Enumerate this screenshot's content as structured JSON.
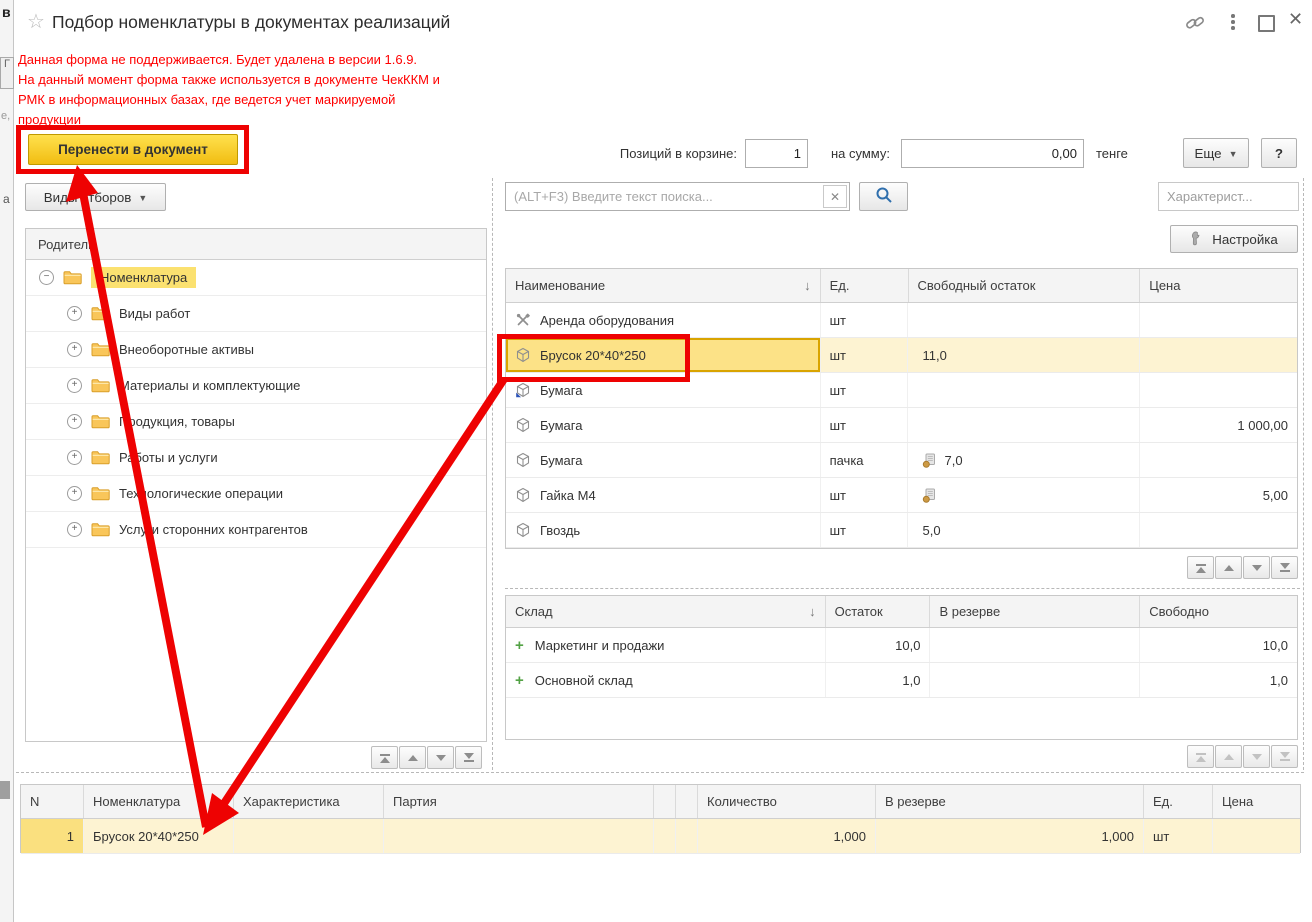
{
  "window": {
    "title": "Подбор номенклатуры в документах реализаций"
  },
  "edge_fragments": {
    "top": "в",
    "box": "Г",
    "mid": "е,",
    "low": "а"
  },
  "warning": {
    "lines": [
      "Данная форма не поддерживается. Будет удалена в версии 1.6.9.",
      "На данный момент форма также используется в документе ЧекККМ и",
      "РМК в информационных базах, где ведется учет маркируемой",
      "продукции"
    ]
  },
  "toolbar": {
    "transfer_button": "Перенести в документ",
    "filter_types_button": "Виды отборов"
  },
  "cart_summary": {
    "positions_label": "Позиций в корзине:",
    "positions_value": "1",
    "sum_label": "на сумму:",
    "sum_value": "0,00",
    "currency": "тенге",
    "more_button": "Еще",
    "help_button": "?"
  },
  "search": {
    "placeholder": "(ALT+F3) Введите текст поиска...",
    "clear_button": "x",
    "characteristics_field": "Характерист...",
    "settings_button": "Настройка"
  },
  "tree": {
    "header": "Родитель",
    "root": {
      "label": "Номенклатура"
    },
    "children": [
      "Виды работ",
      "Внеоборотные активы",
      "Материалы и комплектующие",
      "Продукция, товары",
      "Работы и услуги",
      "Технологические операции",
      "Услуги сторонних контрагентов"
    ]
  },
  "products_table": {
    "columns": [
      "Наименование",
      "Ед.",
      "Свободный остаток",
      "Цена"
    ],
    "sorted_by": "Наименование",
    "rows": [
      {
        "icon": "service-icon",
        "name": "Аренда оборудования",
        "unit": "шт",
        "free": "",
        "price": "",
        "selected": false,
        "badge": false
      },
      {
        "icon": "box-icon",
        "name": "Брусок 20*40*250",
        "unit": "шт",
        "free": "11,0",
        "price": "",
        "selected": true,
        "badge": false
      },
      {
        "icon": "box-marked-icon",
        "name": "Бумага",
        "unit": "шт",
        "free": "",
        "price": "",
        "selected": false,
        "badge": false
      },
      {
        "icon": "box-icon",
        "name": "Бумага",
        "unit": "шт",
        "free": "",
        "price": "1 000,00",
        "selected": false,
        "badge": false
      },
      {
        "icon": "box-icon",
        "name": "Бумага",
        "unit": "пачка",
        "free": "7,0",
        "price": "",
        "selected": false,
        "badge": true
      },
      {
        "icon": "box-icon",
        "name": "Гайка М4",
        "unit": "шт",
        "free": "",
        "price": "5,00",
        "selected": false,
        "badge": true
      },
      {
        "icon": "box-icon",
        "name": "Гвоздь",
        "unit": "шт",
        "free": "5,0",
        "price": "",
        "selected": false,
        "badge": false
      }
    ]
  },
  "stock_table": {
    "columns": [
      "Склад",
      "Остаток",
      "В резерве",
      "Свободно"
    ],
    "sorted_by": "Склад",
    "rows": [
      {
        "name": "Маркетинг и продажи",
        "balance": "10,0",
        "reserved": "",
        "free": "10,0"
      },
      {
        "name": "Основной склад",
        "balance": "1,0",
        "reserved": "",
        "free": "1,0"
      }
    ]
  },
  "selection_table": {
    "columns": [
      "N",
      "Номенклатура",
      "Характеристика",
      "Партия",
      "",
      "",
      "Количество",
      "В резерве",
      "Ед.",
      "Цена"
    ],
    "rows": [
      {
        "n": "1",
        "nomenclature": "Брусок 20*40*250",
        "characteristic": "",
        "batch": "",
        "col5": "",
        "col6": "",
        "quantity": "1,000",
        "reserved": "1,000",
        "unit": "шт",
        "price": ""
      }
    ]
  },
  "annotations": {
    "color": "#ee0202",
    "highlighted": [
      "Перенести в документ",
      "Брусок 20*40*250"
    ]
  },
  "colors": {
    "accent_yellow": "#ffd633",
    "tree_selection": "#fbe170",
    "row_selection": "#fdf3d2",
    "cell_selection": "#fce287",
    "warning_red": "#ff0000",
    "annotation_red": "#ee0202",
    "green_plus": "#53a245",
    "search_blue": "#2f6fad"
  }
}
